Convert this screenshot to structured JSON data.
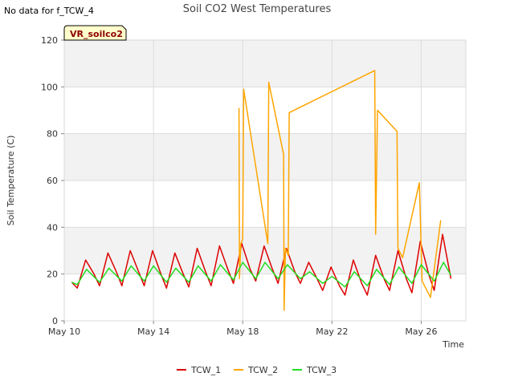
{
  "no_data_note": "No data for f_TCW_4",
  "chart_data": {
    "type": "line",
    "title": "Soil CO2 West Temperatures",
    "xlabel": "Time",
    "ylabel": "Soil Temperature (C)",
    "xlim": [
      "2024-05-10",
      "2024-05-28"
    ],
    "ylim": [
      0,
      120
    ],
    "yticks": [
      0,
      20,
      40,
      60,
      80,
      100,
      120
    ],
    "xticks": [
      {
        "date": "2024-05-10",
        "label": "May 10"
      },
      {
        "date": "2024-05-14",
        "label": "May 14"
      },
      {
        "date": "2024-05-18",
        "label": "May 18"
      },
      {
        "date": "2024-05-22",
        "label": "May 22"
      },
      {
        "date": "2024-05-26",
        "label": "May 26"
      }
    ],
    "grid": true,
    "banded_background": true,
    "legend_position": "bottom",
    "site_label": "VR_soilco2",
    "series": [
      {
        "name": "TCW_1",
        "color": "#dd0000",
        "points": [
          [
            "2024-05-10T08:00",
            16.5
          ],
          [
            "2024-05-10T14:00",
            14
          ],
          [
            "2024-05-10T23:00",
            26
          ],
          [
            "2024-05-11T08:00",
            20
          ],
          [
            "2024-05-11T14:00",
            15
          ],
          [
            "2024-05-11T23:00",
            29
          ],
          [
            "2024-05-12T08:00",
            21
          ],
          [
            "2024-05-12T14:00",
            15
          ],
          [
            "2024-05-12T23:00",
            30
          ],
          [
            "2024-05-13T08:00",
            21
          ],
          [
            "2024-05-13T14:00",
            15
          ],
          [
            "2024-05-13T23:00",
            30
          ],
          [
            "2024-05-14T08:00",
            20
          ],
          [
            "2024-05-14T14:00",
            14
          ],
          [
            "2024-05-14T23:00",
            29
          ],
          [
            "2024-05-15T08:00",
            20
          ],
          [
            "2024-05-15T14:00",
            14.5
          ],
          [
            "2024-05-15T23:00",
            31
          ],
          [
            "2024-05-16T08:00",
            21
          ],
          [
            "2024-05-16T14:00",
            15
          ],
          [
            "2024-05-16T23:00",
            32
          ],
          [
            "2024-05-17T08:00",
            22
          ],
          [
            "2024-05-17T14:00",
            16
          ],
          [
            "2024-05-17T23:00",
            33
          ],
          [
            "2024-05-18T08:00",
            22
          ],
          [
            "2024-05-18T14:00",
            17
          ],
          [
            "2024-05-18T23:00",
            32
          ],
          [
            "2024-05-19T08:00",
            22
          ],
          [
            "2024-05-19T14:00",
            16
          ],
          [
            "2024-05-19T23:00",
            31
          ],
          [
            "2024-05-20T08:00",
            21
          ],
          [
            "2024-05-20T14:00",
            16
          ],
          [
            "2024-05-20T23:00",
            25
          ],
          [
            "2024-05-21T08:00",
            18
          ],
          [
            "2024-05-21T14:00",
            13
          ],
          [
            "2024-05-21T23:00",
            23
          ],
          [
            "2024-05-22T08:00",
            15
          ],
          [
            "2024-05-22T14:00",
            11
          ],
          [
            "2024-05-22T23:00",
            26
          ],
          [
            "2024-05-23T08:00",
            16
          ],
          [
            "2024-05-23T14:00",
            11
          ],
          [
            "2024-05-23T23:00",
            28
          ],
          [
            "2024-05-24T08:00",
            18
          ],
          [
            "2024-05-24T14:00",
            13
          ],
          [
            "2024-05-24T23:00",
            30
          ],
          [
            "2024-05-25T08:00",
            18
          ],
          [
            "2024-05-25T14:00",
            12
          ],
          [
            "2024-05-25T23:00",
            34
          ],
          [
            "2024-05-26T08:00",
            20
          ],
          [
            "2024-05-26T14:00",
            13
          ],
          [
            "2024-05-26T23:00",
            37
          ],
          [
            "2024-05-27T08:00",
            18
          ]
        ]
      },
      {
        "name": "TCW_2",
        "color": "#ffa500",
        "points": [
          [
            "2024-05-17T20:00",
            91
          ],
          [
            "2024-05-17T20:30",
            18
          ],
          [
            "2024-05-17T22:00",
            33
          ],
          [
            "2024-05-18T00:00",
            35
          ],
          [
            "2024-05-18T01:00",
            99
          ],
          [
            "2024-05-19T03:00",
            33
          ],
          [
            "2024-05-19T04:00",
            102
          ],
          [
            "2024-05-19T20:00",
            71
          ],
          [
            "2024-05-19T20:30",
            4.5
          ],
          [
            "2024-05-19T22:00",
            31
          ],
          [
            "2024-05-20T01:00",
            28
          ],
          [
            "2024-05-20T02:00",
            89
          ],
          [
            "2024-05-23T22:00",
            107
          ],
          [
            "2024-05-23T23:00",
            37
          ],
          [
            "2024-05-24T01:00",
            90
          ],
          [
            "2024-05-24T22:00",
            81
          ],
          [
            "2024-05-24T23:00",
            31
          ],
          [
            "2024-05-25T04:00",
            27
          ],
          [
            "2024-05-25T22:00",
            59
          ],
          [
            "2024-05-26T01:00",
            17
          ],
          [
            "2024-05-26T10:00",
            10
          ],
          [
            "2024-05-26T21:00",
            43
          ]
        ]
      },
      {
        "name": "TCW_3",
        "color": "#22dd22",
        "points": [
          [
            "2024-05-10T08:00",
            16.5
          ],
          [
            "2024-05-10T14:00",
            15.5
          ],
          [
            "2024-05-11T00:00",
            22
          ],
          [
            "2024-05-11T14:00",
            16.5
          ],
          [
            "2024-05-12T00:00",
            22.5
          ],
          [
            "2024-05-12T14:00",
            17
          ],
          [
            "2024-05-13T00:00",
            23.5
          ],
          [
            "2024-05-13T14:00",
            17
          ],
          [
            "2024-05-14T00:00",
            23.5
          ],
          [
            "2024-05-14T14:00",
            16.5
          ],
          [
            "2024-05-15T00:00",
            22.5
          ],
          [
            "2024-05-15T14:00",
            16.5
          ],
          [
            "2024-05-16T00:00",
            23.5
          ],
          [
            "2024-05-16T14:00",
            17
          ],
          [
            "2024-05-17T00:00",
            24
          ],
          [
            "2024-05-17T14:00",
            17.5
          ],
          [
            "2024-05-18T00:00",
            25
          ],
          [
            "2024-05-18T14:00",
            18
          ],
          [
            "2024-05-19T00:00",
            25
          ],
          [
            "2024-05-19T14:00",
            18
          ],
          [
            "2024-05-20T00:00",
            24
          ],
          [
            "2024-05-20T14:00",
            18
          ],
          [
            "2024-05-21T00:00",
            21
          ],
          [
            "2024-05-21T14:00",
            16
          ],
          [
            "2024-05-22T00:00",
            19
          ],
          [
            "2024-05-22T14:00",
            14.5
          ],
          [
            "2024-05-23T00:00",
            21
          ],
          [
            "2024-05-23T14:00",
            15
          ],
          [
            "2024-05-24T00:00",
            22
          ],
          [
            "2024-05-24T14:00",
            15.5
          ],
          [
            "2024-05-25T00:00",
            23
          ],
          [
            "2024-05-25T14:00",
            16
          ],
          [
            "2024-05-26T00:00",
            24
          ],
          [
            "2024-05-26T14:00",
            17
          ],
          [
            "2024-05-27T00:00",
            25
          ],
          [
            "2024-05-27T08:00",
            19.5
          ]
        ]
      }
    ]
  }
}
